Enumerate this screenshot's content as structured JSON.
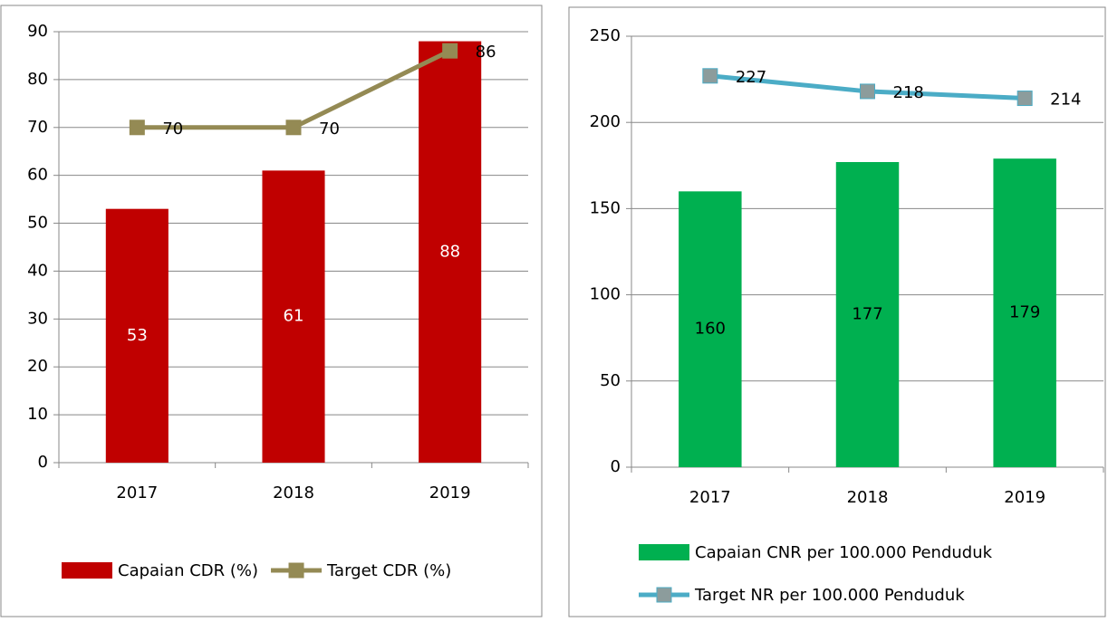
{
  "chart_data": [
    {
      "type": "combo",
      "categories": [
        "2017",
        "2018",
        "2019"
      ],
      "series": [
        {
          "name": "Capaian CDR (%)",
          "type": "bar",
          "color": "#c00000",
          "label_color": "#ffffff",
          "values": [
            53,
            61,
            88
          ]
        },
        {
          "name": "Target CDR (%)",
          "type": "line",
          "color": "#948a54",
          "marker_color": "#948a54",
          "values": [
            70,
            70,
            86
          ]
        }
      ],
      "ylim": [
        0,
        90
      ],
      "yticks": [
        0,
        10,
        20,
        30,
        40,
        50,
        60,
        70,
        80,
        90
      ],
      "grid": true,
      "legend": "bottom"
    },
    {
      "type": "combo",
      "categories": [
        "2017",
        "2018",
        "2019"
      ],
      "series": [
        {
          "name": "Capaian CNR per 100.000 Penduduk",
          "type": "bar",
          "color": "#00b050",
          "label_color": "#000000",
          "values": [
            160,
            177,
            179
          ]
        },
        {
          "name": "Target NR per 100.000 Penduduk",
          "type": "line",
          "color": "#4bacc6",
          "marker_color": "#8c9c9c",
          "values": [
            227,
            218,
            214
          ]
        }
      ],
      "ylim": [
        0,
        250
      ],
      "yticks": [
        0,
        50,
        100,
        150,
        200,
        250
      ],
      "grid": true,
      "legend": "bottom"
    }
  ]
}
